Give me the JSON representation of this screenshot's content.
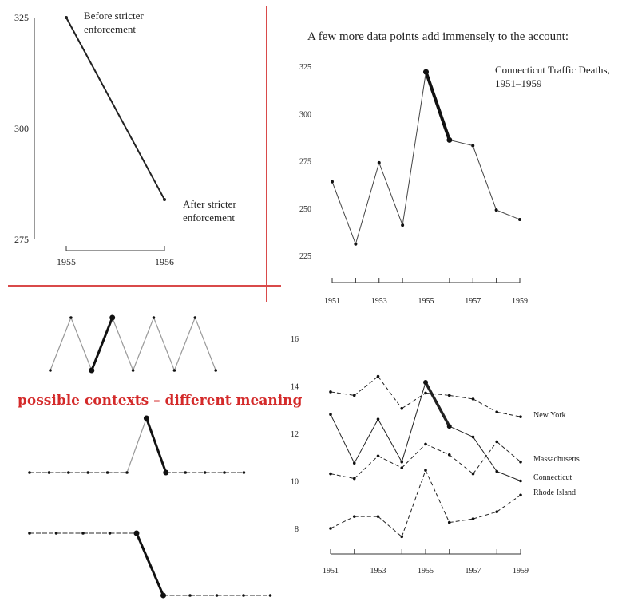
{
  "caption": "possible contexts – different meaning",
  "colors": {
    "divider": "#d94a4a",
    "caption": "#d42a2a",
    "ink": "#222222"
  },
  "chart_data": [
    {
      "id": "two-point",
      "type": "line",
      "x": [
        1955,
        1956
      ],
      "xticks": [
        "1955",
        "1956"
      ],
      "yticks": [
        "325",
        "300",
        "275"
      ],
      "ylim": [
        275,
        325
      ],
      "values": [
        325,
        284
      ],
      "annotations": [
        {
          "lines": [
            "Before stricter",
            "enforcement"
          ]
        },
        {
          "lines": [
            "After stricter",
            "enforcement"
          ]
        }
      ]
    },
    {
      "id": "connecticut",
      "type": "line",
      "title_above": "A few more data points add immensely to the account:",
      "legend_label": [
        "Connecticut Traffic Deaths,",
        "1951–1959"
      ],
      "x": [
        1951,
        1952,
        1953,
        1954,
        1955,
        1956,
        1957,
        1958,
        1959
      ],
      "xticks": [
        "1951",
        "1953",
        "1955",
        "1957",
        "1959"
      ],
      "yticks": [
        "325",
        "300",
        "275",
        "250",
        "225"
      ],
      "ylim": [
        225,
        325
      ],
      "values": [
        264,
        231,
        274,
        241,
        322,
        286,
        283,
        249,
        244
      ],
      "emphasis_range": [
        1955,
        1956
      ]
    },
    {
      "id": "context-zigzag",
      "type": "line",
      "values": [
        0,
        1,
        0,
        1,
        0,
        1,
        0,
        1,
        0
      ],
      "emphasis_segment": [
        2,
        3
      ]
    },
    {
      "id": "context-spike",
      "type": "line",
      "values": [
        0,
        0,
        0,
        0,
        0,
        0,
        1,
        0,
        0,
        0,
        0,
        0
      ],
      "emphasis_segment": [
        6,
        7
      ]
    },
    {
      "id": "context-step",
      "type": "line",
      "values": [
        1,
        1,
        1,
        1,
        1,
        0,
        0,
        0,
        0,
        0
      ],
      "emphasis_segment": [
        4,
        5
      ]
    },
    {
      "id": "four-states",
      "type": "line",
      "x": [
        1951,
        1952,
        1953,
        1954,
        1955,
        1956,
        1957,
        1958,
        1959
      ],
      "xticks": [
        "1951",
        "1953",
        "1955",
        "1957",
        "1959"
      ],
      "yticks": [
        "16",
        "14",
        "12",
        "10",
        "8"
      ],
      "ylim": [
        8,
        16
      ],
      "series": [
        {
          "name": "New York",
          "style": "dashed",
          "values": [
            13.75,
            13.6,
            14.4,
            13.05,
            13.7,
            13.6,
            13.45,
            12.9,
            12.7
          ]
        },
        {
          "name": "Connecticut",
          "style": "solid",
          "values": [
            12.8,
            10.75,
            12.6,
            10.8,
            14.15,
            12.3,
            11.85,
            10.4,
            10.0
          ]
        },
        {
          "name": "Massachusetts",
          "style": "dashed",
          "values": [
            10.3,
            10.1,
            11.05,
            10.55,
            11.55,
            11.1,
            10.3,
            11.65,
            10.8
          ]
        },
        {
          "name": "Rhode Island",
          "style": "dashed",
          "values": [
            8.0,
            8.5,
            8.5,
            7.65,
            10.45,
            8.25,
            8.4,
            8.7,
            9.4
          ]
        }
      ],
      "emphasis_series": "Connecticut",
      "emphasis_range": [
        1955,
        1956
      ]
    }
  ]
}
